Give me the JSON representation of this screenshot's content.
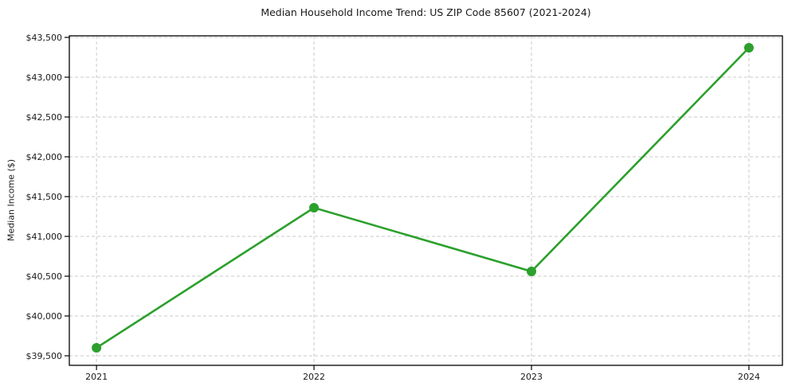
{
  "chart_data": {
    "type": "line",
    "title": "Median Household Income Trend: US ZIP Code 85607 (2021-2024)",
    "xlabel": "",
    "ylabel": "Median Income ($)",
    "x": [
      2021,
      2022,
      2023,
      2024
    ],
    "x_tick_labels": [
      "2021",
      "2022",
      "2023",
      "2024"
    ],
    "values": [
      39600,
      41360,
      40560,
      43370
    ],
    "y_ticks": [
      39500,
      40000,
      40500,
      41000,
      41500,
      42000,
      42500,
      43000,
      43500
    ],
    "y_tick_labels": [
      "$39,500",
      "$40,000",
      "$40,500",
      "$41,000",
      "$41,500",
      "$42,000",
      "$42,500",
      "$43,000",
      "$43,500"
    ],
    "xlim": [
      2020.875,
      2024.154
    ],
    "ylim": [
      39380,
      43520
    ],
    "grid": true,
    "grid_style": "dashed",
    "legend": false,
    "marker": "circle",
    "colors": {
      "line": "#2ca02c",
      "marker": "#2ca02c",
      "grid": "#c9c9c9",
      "spine": "#000000",
      "tick": "#000000",
      "text": "#1a1a1a",
      "background": "#ffffff"
    }
  }
}
